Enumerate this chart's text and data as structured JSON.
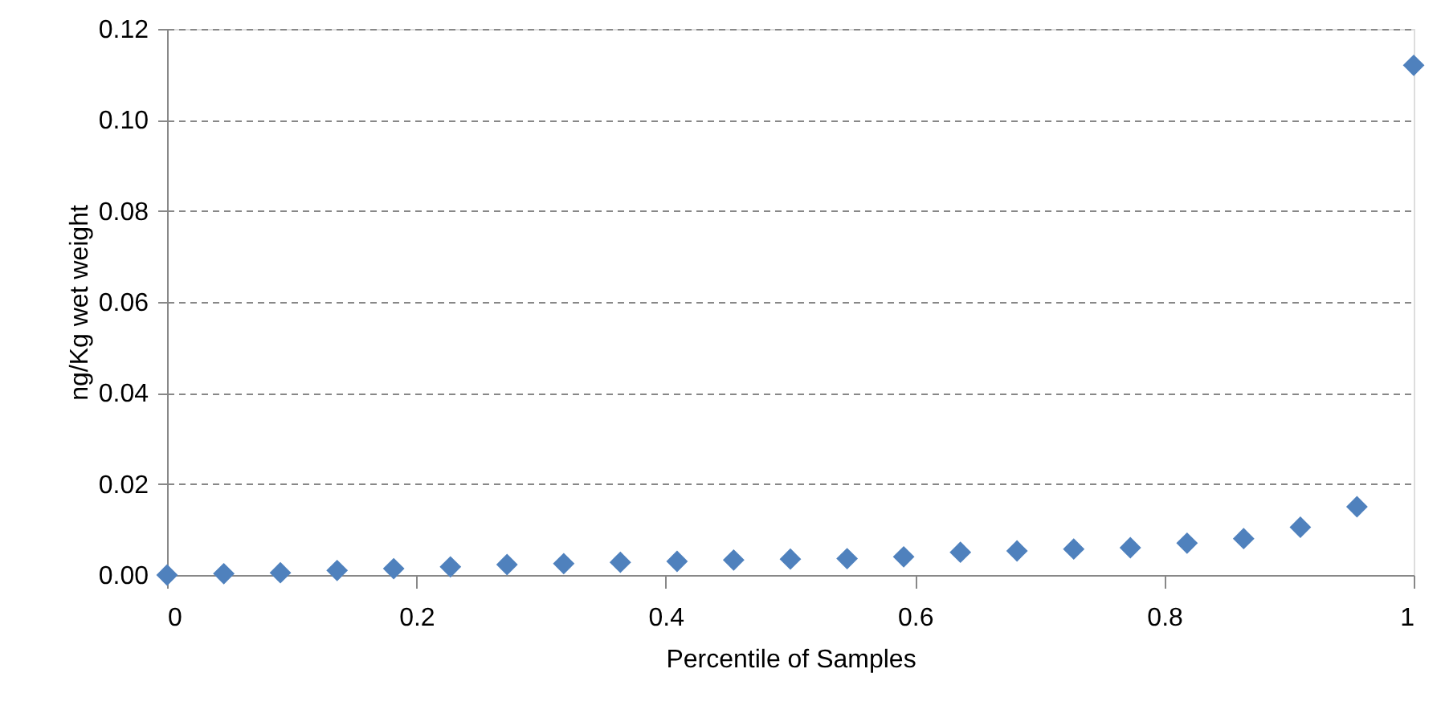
{
  "chart_data": {
    "type": "scatter",
    "xlabel": "Percentile of Samples",
    "ylabel": "ng/Kg wet weight",
    "x": [
      0,
      0.0455,
      0.0909,
      0.1364,
      0.1818,
      0.2273,
      0.2727,
      0.3182,
      0.3636,
      0.4091,
      0.4545,
      0.5,
      0.5455,
      0.5909,
      0.6364,
      0.6818,
      0.7273,
      0.7727,
      0.8182,
      0.8636,
      0.9091,
      0.9545,
      1
    ],
    "series": [
      {
        "color": "#4f81bd",
        "values": [
          0,
          0.0003,
          0.0005,
          0.001,
          0.0014,
          0.0018,
          0.0023,
          0.0025,
          0.0028,
          0.003,
          0.0033,
          0.0035,
          0.0036,
          0.004,
          0.005,
          0.0053,
          0.0057,
          0.006,
          0.007,
          0.008,
          0.0105,
          0.015,
          0.112
        ]
      }
    ],
    "xlim": [
      0,
      1
    ],
    "xticks": [
      0,
      0.2,
      0.4,
      0.6,
      0.8,
      1
    ],
    "ylim": [
      0,
      0.12
    ],
    "yticks": [
      {
        "value": 0,
        "label": "0.00"
      },
      {
        "value": 0.02,
        "label": "0.02"
      },
      {
        "value": 0.04,
        "label": "0.04"
      },
      {
        "value": 0.06,
        "label": "0.06"
      },
      {
        "value": 0.08,
        "label": "0.08"
      },
      {
        "value": 0.1,
        "label": "0.10"
      },
      {
        "value": 0.12,
        "label": "0.12"
      }
    ],
    "grid": "y",
    "marker": "diamond"
  }
}
